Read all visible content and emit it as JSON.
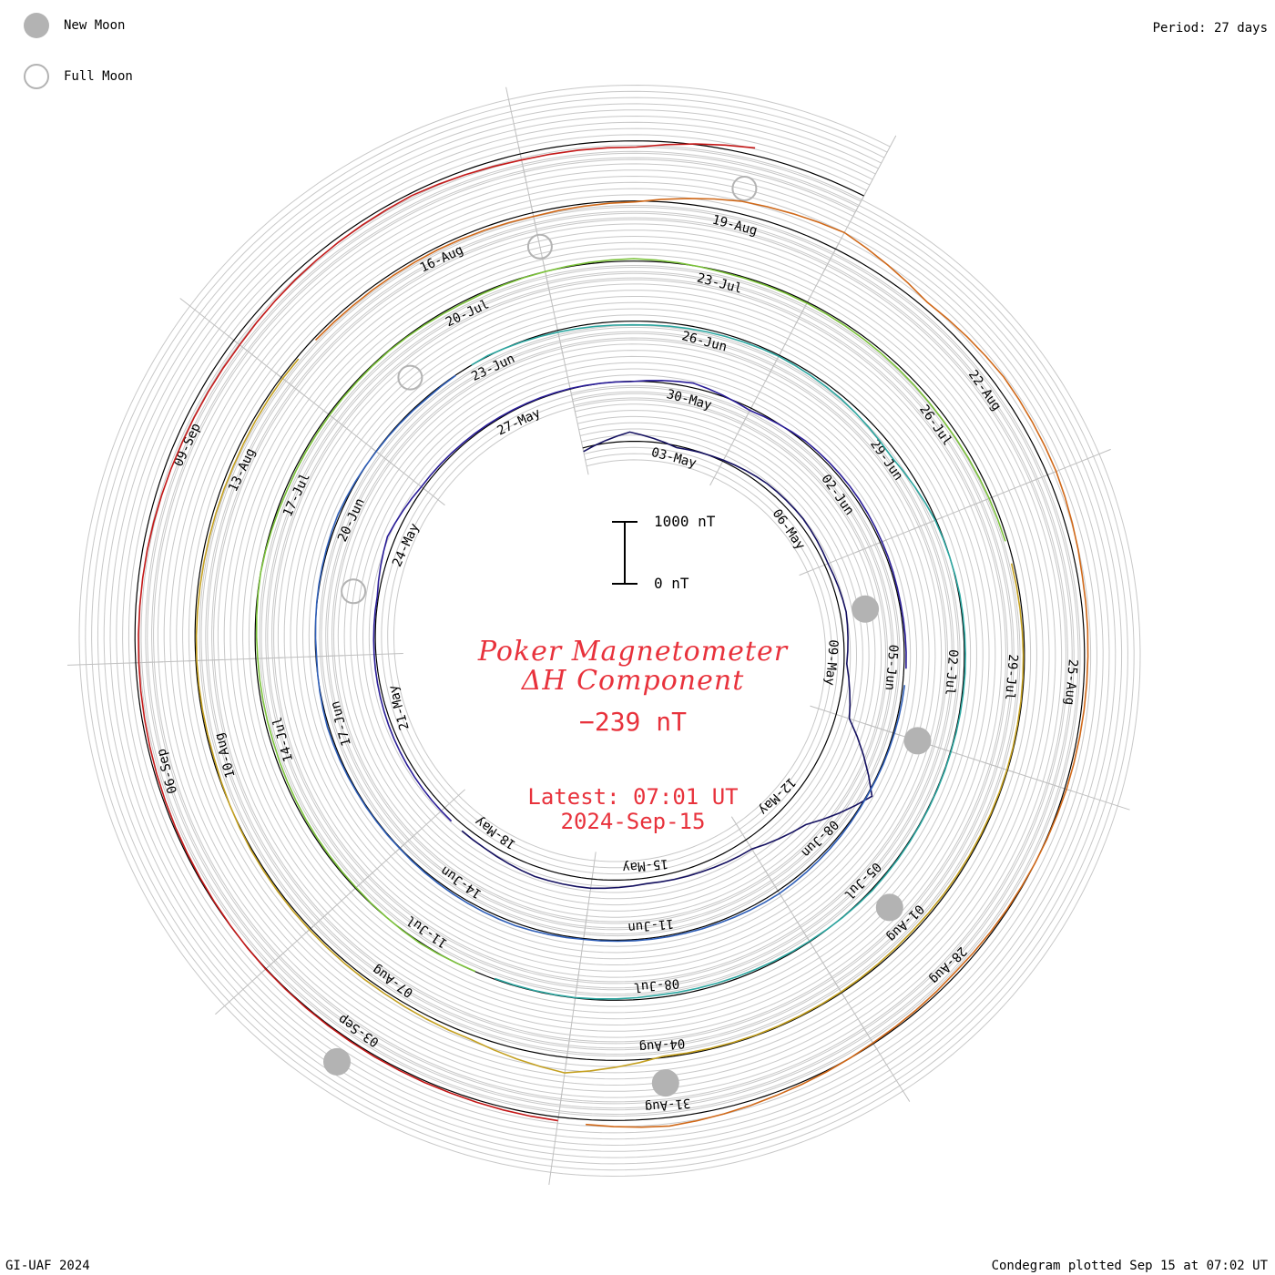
{
  "legend": {
    "new_moon_label": "New Moon",
    "full_moon_label": "Full Moon"
  },
  "header": {
    "period": "Period: 27 days"
  },
  "title": {
    "line1": "Poker Magnetometer",
    "line2": "ΔH Component",
    "value": "−239 nT",
    "latest_time": "Latest: 07:01 UT",
    "latest_date": "2024-Sep-15"
  },
  "scale_bar": {
    "top_label": "1000 nT",
    "bottom_label": "0 nT"
  },
  "footer": {
    "credit": "GI-UAF 2024",
    "plotted": "Condegram plotted Sep 15 at 07:02 UT"
  },
  "colors": {
    "title": "#e8323c",
    "moon": "#b3b3b3",
    "grid": "#c8c8c8",
    "baseline": "#000000"
  },
  "chart_data": {
    "type": "line",
    "subtype": "condegram-spiral",
    "period_days": 27,
    "start_date": "2024-05-01",
    "end_date": "2024-09-15",
    "scale_nT": 1000,
    "date_labels": [
      "03-May",
      "06-May",
      "09-May",
      "12-May",
      "15-May",
      "18-May",
      "21-May",
      "24-May",
      "27-May",
      "30-May",
      "02-Jun",
      "05-Jun",
      "08-Jun",
      "11-Jun",
      "14-Jun",
      "17-Jun",
      "20-Jun",
      "23-Jun",
      "26-Jun",
      "29-Jun",
      "02-Jul",
      "05-Jul",
      "08-Jul",
      "11-Jul",
      "14-Jul",
      "17-Jul",
      "20-Jul",
      "23-Jul",
      "26-Jul",
      "29-Jul",
      "01-Aug",
      "04-Aug",
      "07-Aug",
      "10-Aug",
      "13-Aug",
      "16-Aug",
      "19-Aug",
      "22-Aug",
      "25-Aug",
      "28-Aug",
      "31-Aug",
      "03-Sep",
      "06-Sep",
      "09-Sep"
    ],
    "new_moons": [
      "2024-05-08",
      "2024-06-06",
      "2024-07-05",
      "2024-08-04",
      "2024-09-03"
    ],
    "full_moons": [
      "2024-05-23",
      "2024-06-22",
      "2024-07-21",
      "2024-08-19"
    ],
    "series": [
      {
        "day": 1,
        "dH": 120
      },
      {
        "day": 2,
        "dH": -300
      },
      {
        "day": 3,
        "dH": 60
      },
      {
        "day": 4,
        "dH": -40
      },
      {
        "day": 5,
        "dH": -150
      },
      {
        "day": 6,
        "dH": -180
      },
      {
        "day": 7,
        "dH": -120
      },
      {
        "day": 8,
        "dH": -200
      },
      {
        "day": 9,
        "dH": -90
      },
      {
        "day": 10,
        "dH": -450
      },
      {
        "day": 11,
        "dH": -2100
      },
      {
        "day": 12,
        "dH": -900
      },
      {
        "day": 13,
        "dH": -350
      },
      {
        "day": 14,
        "dH": -250
      },
      {
        "day": 15,
        "dH": -180
      },
      {
        "day": 16,
        "dH": -300
      },
      {
        "day": 17,
        "dH": -320
      },
      {
        "day": 18,
        "dH": -200
      },
      {
        "day": 19,
        "dH": -150
      },
      {
        "day": 20,
        "dH": -120
      },
      {
        "day": 21,
        "dH": -90
      },
      {
        "day": 22,
        "dH": -60
      },
      {
        "day": 23,
        "dH": -40
      },
      {
        "day": 24,
        "dH": -250
      },
      {
        "day": 25,
        "dH": -80
      },
      {
        "day": 26,
        "dH": -50
      },
      {
        "day": 27,
        "dH": -30
      },
      {
        "day": 28,
        "dH": -20
      },
      {
        "day": 29,
        "dH": 10
      },
      {
        "day": 30,
        "dH": -150
      },
      {
        "day": 31,
        "dH": 80
      },
      {
        "day": 32,
        "dH": -60
      },
      {
        "day": 33,
        "dH": -80
      },
      {
        "day": 34,
        "dH": -60
      },
      {
        "day": 35,
        "dH": -40
      },
      {
        "day": 36,
        "dH": -70
      },
      {
        "day": 37,
        "dH": -40
      },
      {
        "day": 38,
        "dH": -20
      },
      {
        "day": 39,
        "dH": -60
      },
      {
        "day": 40,
        "dH": -100
      },
      {
        "day": 41,
        "dH": -60
      },
      {
        "day": 42,
        "dH": -40
      },
      {
        "day": 43,
        "dH": -30
      },
      {
        "day": 44,
        "dH": -90
      },
      {
        "day": 45,
        "dH": -60
      },
      {
        "day": 46,
        "dH": -20
      },
      {
        "day": 47,
        "dH": -30
      },
      {
        "day": 48,
        "dH": -50
      },
      {
        "day": 49,
        "dH": 20
      },
      {
        "day": 50,
        "dH": -20
      },
      {
        "day": 51,
        "dH": -60
      },
      {
        "day": 52,
        "dH": 10
      },
      {
        "day": 53,
        "dH": 40
      },
      {
        "day": 54,
        "dH": -20
      },
      {
        "day": 55,
        "dH": 60
      },
      {
        "day": 56,
        "dH": 120
      },
      {
        "day": 57,
        "dH": 80
      },
      {
        "day": 58,
        "dH": 40
      },
      {
        "day": 59,
        "dH": 100
      },
      {
        "day": 60,
        "dH": 220
      },
      {
        "day": 61,
        "dH": 30
      },
      {
        "day": 62,
        "dH": -30
      },
      {
        "day": 63,
        "dH": -40
      },
      {
        "day": 64,
        "dH": -20
      },
      {
        "day": 65,
        "dH": -20
      },
      {
        "day": 66,
        "dH": -40
      },
      {
        "day": 67,
        "dH": 20
      },
      {
        "day": 68,
        "dH": 60
      },
      {
        "day": 69,
        "dH": 80
      },
      {
        "day": 70,
        "dH": 10
      },
      {
        "day": 71,
        "dH": 20
      },
      {
        "day": 72,
        "dH": -30
      },
      {
        "day": 73,
        "dH": 30
      },
      {
        "day": 74,
        "dH": 50
      },
      {
        "day": 75,
        "dH": 80
      },
      {
        "day": 76,
        "dH": 60
      },
      {
        "day": 77,
        "dH": 0
      },
      {
        "day": 78,
        "dH": 60
      },
      {
        "day": 79,
        "dH": 40
      },
      {
        "day": 80,
        "dH": 20
      },
      {
        "day": 81,
        "dH": 50
      },
      {
        "day": 82,
        "dH": 0
      },
      {
        "day": 83,
        "dH": -80
      },
      {
        "day": 84,
        "dH": 30
      },
      {
        "day": 85,
        "dH": 40
      },
      {
        "day": 86,
        "dH": 80
      },
      {
        "day": 87,
        "dH": 120
      },
      {
        "day": 88,
        "dH": 90
      },
      {
        "day": 89,
        "dH": 60
      },
      {
        "day": 90,
        "dH": 30
      },
      {
        "day": 91,
        "dH": 20
      },
      {
        "day": 92,
        "dH": 40
      },
      {
        "day": 93,
        "dH": 60
      },
      {
        "day": 94,
        "dH": 30
      },
      {
        "day": 95,
        "dH": 20
      },
      {
        "day": 96,
        "dH": 40
      },
      {
        "day": 97,
        "dH": -500
      },
      {
        "day": 98,
        "dH": -150
      },
      {
        "day": 99,
        "dH": -80
      },
      {
        "day": 100,
        "dH": -60
      },
      {
        "day": 101,
        "dH": -40
      },
      {
        "day": 102,
        "dH": 40
      },
      {
        "day": 103,
        "dH": 30
      },
      {
        "day": 104,
        "dH": 80
      },
      {
        "day": 105,
        "dH": 100
      },
      {
        "day": 106,
        "dH": 60
      },
      {
        "day": 107,
        "dH": 90
      },
      {
        "day": 108,
        "dH": 80
      },
      {
        "day": 109,
        "dH": 120
      },
      {
        "day": 110,
        "dH": 30
      },
      {
        "day": 111,
        "dH": -400
      },
      {
        "day": 112,
        "dH": -600
      },
      {
        "day": 113,
        "dH": -200
      },
      {
        "day": 114,
        "dH": -350
      },
      {
        "day": 115,
        "dH": -300
      },
      {
        "day": 116,
        "dH": -150
      },
      {
        "day": 117,
        "dH": -100
      },
      {
        "day": 118,
        "dH": -60
      },
      {
        "day": 119,
        "dH": 20
      },
      {
        "day": 120,
        "dH": 80
      },
      {
        "day": 121,
        "dH": 30
      },
      {
        "day": 122,
        "dH": -100
      },
      {
        "day": 123,
        "dH": -280
      },
      {
        "day": 124,
        "dH": -120
      },
      {
        "day": 125,
        "dH": -60
      },
      {
        "day": 126,
        "dH": -40
      },
      {
        "day": 127,
        "dH": -20
      },
      {
        "day": 128,
        "dH": 30
      },
      {
        "day": 129,
        "dH": 60
      },
      {
        "day": 130,
        "dH": 100
      },
      {
        "day": 131,
        "dH": 150
      },
      {
        "day": 132,
        "dH": 220
      },
      {
        "day": 133,
        "dH": 240
      },
      {
        "day": 134,
        "dH": 150
      },
      {
        "day": 135,
        "dH": 80
      },
      {
        "day": 136,
        "dH": 200
      },
      {
        "day": 137,
        "dH": 200
      },
      {
        "day": 138,
        "dH": -239
      }
    ]
  }
}
